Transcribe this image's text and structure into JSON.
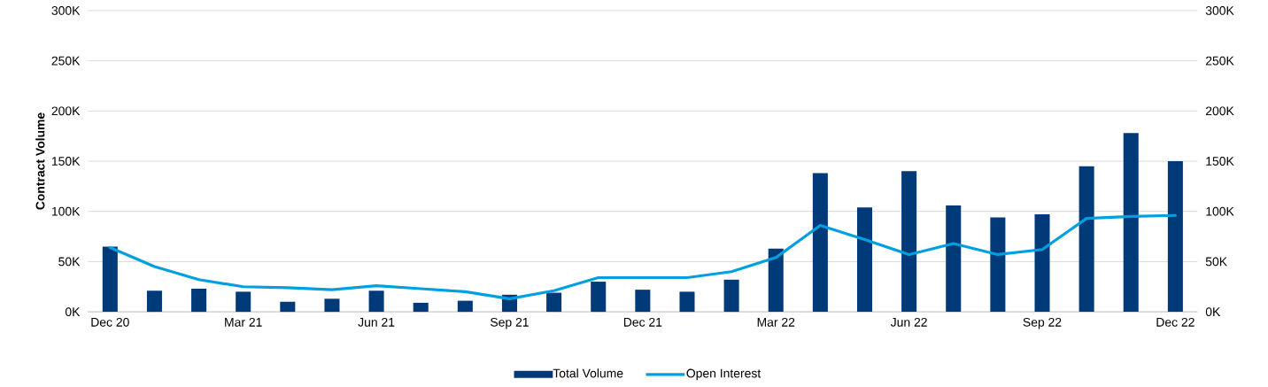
{
  "chart_data": {
    "type": "bar",
    "ylabel": "Contract Volume",
    "categories": [
      "Dec 20",
      null,
      null,
      "Mar 21",
      null,
      null,
      "Jun 21",
      null,
      null,
      "Sep 21",
      null,
      null,
      "Dec 21",
      null,
      null,
      "Mar 22",
      null,
      null,
      "Jun 22",
      null,
      null,
      "Sep 22",
      null,
      null,
      "Dec 22"
    ],
    "series": [
      {
        "name": "Total Volume",
        "color": "#003a78",
        "values": [
          65000,
          21000,
          23000,
          20000,
          10000,
          13000,
          21000,
          9000,
          11000,
          17000,
          19000,
          30000,
          22000,
          20000,
          32000,
          63000,
          138000,
          104000,
          140000,
          106000,
          94000,
          97000,
          145000,
          178000,
          150000
        ]
      },
      {
        "name": "Open Interest",
        "type": "line",
        "axis": "y2",
        "color": "#00a0e0",
        "values": [
          64000,
          45000,
          32000,
          25000,
          24000,
          22000,
          26000,
          23000,
          20000,
          13000,
          21000,
          34000,
          34000,
          34000,
          40000,
          54000,
          86000,
          72000,
          57000,
          68000,
          57000,
          62000,
          93000,
          95000,
          96000
        ]
      }
    ],
    "ylim": [
      0,
      300000
    ],
    "yticks": [
      {
        "value": 0,
        "label": "0K"
      },
      {
        "value": 50000,
        "label": "50K"
      },
      {
        "value": 100000,
        "label": "100K"
      },
      {
        "value": 150000,
        "label": "150K"
      },
      {
        "value": 200000,
        "label": "200K"
      },
      {
        "value": 250000,
        "label": "250K"
      },
      {
        "value": 300000,
        "label": "300K"
      }
    ],
    "y2lim": [
      0,
      300000
    ],
    "y2ticks": [
      {
        "value": 0,
        "label": "0K"
      },
      {
        "value": 50000,
        "label": "50K"
      },
      {
        "value": 100000,
        "label": "100K"
      },
      {
        "value": 150000,
        "label": "150K"
      },
      {
        "value": 200000,
        "label": "200K"
      },
      {
        "value": 250000,
        "label": "250K"
      },
      {
        "value": 300000,
        "label": "300K"
      }
    ],
    "grid": "y",
    "legend": "bottom"
  }
}
